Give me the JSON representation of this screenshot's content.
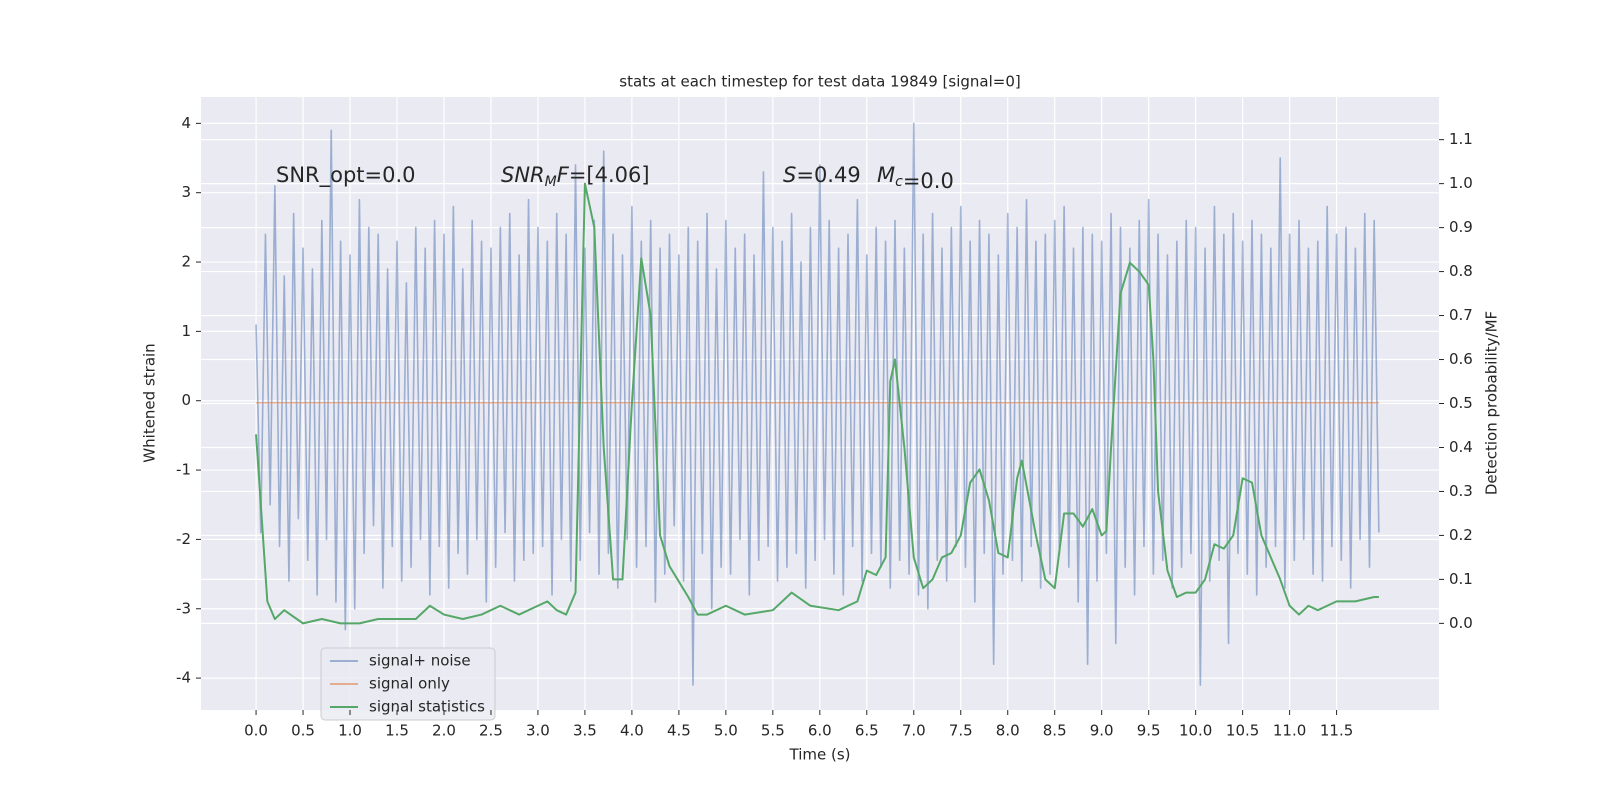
{
  "chart_data": {
    "type": "line",
    "title": "stats at each timestep for test data 19849 [signal=0]",
    "x_label": "Time (s)",
    "y_label": "Whitened strain",
    "y2_label": "Detection probability/MF",
    "grid": true,
    "legend": "lower left",
    "xlim": [
      -0.586,
      12.59
    ],
    "ylim": [
      -4.46,
      4.38
    ],
    "y2lim": [
      -0.197,
      1.197
    ],
    "xticks": [
      {
        "value": 0,
        "label": "0.0"
      },
      0.5,
      {
        "value": 1,
        "label": "1.0"
      },
      1.5,
      {
        "value": 2,
        "label": "2.0"
      },
      2.5,
      {
        "value": 3,
        "label": "3.0"
      },
      3.5,
      {
        "value": 4,
        "label": "4.0"
      },
      4.5,
      {
        "value": 5,
        "label": "5.0"
      },
      5.5,
      {
        "value": 6,
        "label": "6.0"
      },
      6.5,
      {
        "value": 7,
        "label": "7.0"
      },
      7.5,
      {
        "value": 8,
        "label": "8.0"
      },
      8.5,
      {
        "value": 9,
        "label": "9.0"
      },
      9.5,
      {
        "value": 10,
        "label": "10.0"
      },
      10.5,
      {
        "value": 11,
        "label": "11.0"
      },
      11.5
    ],
    "yticks": [
      -4,
      -3,
      -2,
      -1,
      0,
      1,
      2,
      3,
      4
    ],
    "y2ticks": [
      {
        "value": 0,
        "label": "0.0"
      },
      0.1,
      0.2,
      0.3,
      0.4,
      0.5,
      0.6,
      0.7,
      0.8,
      0.9,
      {
        "value": 1,
        "label": "1.0"
      },
      1.1
    ],
    "annotations": [
      {
        "text": "SNR_opt=0.0"
      },
      {
        "math": "SNR",
        "sub": "M",
        "math2": "F",
        "text": "=[4.06]"
      },
      {
        "math": "S",
        "text": "=0.49"
      },
      {
        "math": "M",
        "sub": "c",
        "text": "=0.0"
      }
    ],
    "series": [
      {
        "name": "signal+ noise",
        "color": "#4c72b0",
        "opacity": 0.5,
        "x": [
          0,
          0.05,
          0.1,
          0.15,
          0.2,
          0.25,
          0.3,
          0.35,
          0.4,
          0.45,
          0.5,
          0.55,
          0.6,
          0.65,
          0.7,
          0.75,
          0.8,
          0.85,
          0.9,
          0.95,
          1,
          1.05,
          1.1,
          1.15,
          1.2,
          1.25,
          1.3,
          1.35,
          1.4,
          1.45,
          1.5,
          1.55,
          1.6,
          1.65,
          1.7,
          1.75,
          1.8,
          1.85,
          1.9,
          1.95,
          2,
          2.05,
          2.1,
          2.15,
          2.2,
          2.25,
          2.3,
          2.35,
          2.4,
          2.45,
          2.5,
          2.55,
          2.6,
          2.65,
          2.7,
          2.75,
          2.8,
          2.85,
          2.9,
          2.95,
          3,
          3.05,
          3.1,
          3.15,
          3.2,
          3.25,
          3.3,
          3.35,
          3.4,
          3.45,
          3.5,
          3.55,
          3.6,
          3.65,
          3.7,
          3.75,
          3.8,
          3.85,
          3.9,
          3.95,
          4,
          4.05,
          4.1,
          4.15,
          4.2,
          4.25,
          4.3,
          4.35,
          4.4,
          4.45,
          4.5,
          4.55,
          4.6,
          4.65,
          4.7,
          4.75,
          4.8,
          4.85,
          4.9,
          4.95,
          5,
          5.05,
          5.1,
          5.15,
          5.2,
          5.25,
          5.3,
          5.35,
          5.4,
          5.45,
          5.5,
          5.55,
          5.6,
          5.65,
          5.7,
          5.75,
          5.8,
          5.85,
          5.9,
          5.95,
          6,
          6.05,
          6.1,
          6.15,
          6.2,
          6.25,
          6.3,
          6.35,
          6.4,
          6.45,
          6.5,
          6.55,
          6.6,
          6.65,
          6.7,
          6.75,
          6.8,
          6.85,
          6.9,
          6.95,
          7,
          7.05,
          7.1,
          7.15,
          7.2,
          7.25,
          7.3,
          7.35,
          7.4,
          7.45,
          7.5,
          7.55,
          7.6,
          7.65,
          7.7,
          7.75,
          7.8,
          7.85,
          7.9,
          7.95,
          8,
          8.05,
          8.1,
          8.15,
          8.2,
          8.25,
          8.3,
          8.35,
          8.4,
          8.45,
          8.5,
          8.55,
          8.6,
          8.65,
          8.7,
          8.75,
          8.8,
          8.85,
          8.9,
          8.95,
          9,
          9.05,
          9.1,
          9.15,
          9.2,
          9.25,
          9.3,
          9.35,
          9.4,
          9.45,
          9.5,
          9.55,
          9.6,
          9.65,
          9.7,
          9.75,
          9.8,
          9.85,
          9.9,
          9.95,
          10,
          10.05,
          10.1,
          10.15,
          10.2,
          10.25,
          10.3,
          10.35,
          10.4,
          10.45,
          10.5,
          10.55,
          10.6,
          10.65,
          10.7,
          10.75,
          10.8,
          10.85,
          10.9,
          10.95,
          11,
          11.05,
          11.1,
          11.15,
          11.2,
          11.25,
          11.3,
          11.35,
          11.4,
          11.45,
          11.5,
          11.55,
          11.6,
          11.65,
          11.7,
          11.75,
          11.8,
          11.85,
          11.9,
          11.95
        ],
        "values": [
          1.1,
          -1.9,
          2.4,
          -1.5,
          3.1,
          -2.1,
          1.8,
          -2.6,
          2.7,
          -1.7,
          2.2,
          -2.3,
          1.9,
          -2.8,
          2.6,
          -2.0,
          3.9,
          -2.9,
          2.3,
          -3.3,
          2.1,
          -3.0,
          2.9,
          -2.2,
          2.5,
          -1.8,
          2.4,
          -2.7,
          1.9,
          -2.1,
          2.3,
          -2.6,
          1.7,
          -2.4,
          2.5,
          -2.0,
          2.2,
          -2.8,
          2.6,
          -2.1,
          2.4,
          -2.7,
          2.8,
          -2.2,
          1.9,
          -2.5,
          2.6,
          -2.0,
          2.3,
          -2.9,
          2.2,
          -2.4,
          2.5,
          -1.9,
          2.7,
          -2.6,
          2.1,
          -2.3,
          2.9,
          -2.2,
          2.5,
          -2.1,
          2.3,
          -2.8,
          2.7,
          -2.0,
          2.4,
          -2.6,
          3.4,
          -2.3,
          2.2,
          -1.9,
          2.6,
          -2.5,
          3.6,
          -2.2,
          2.4,
          -2.7,
          2.1,
          -2.0,
          2.8,
          -2.4,
          2.3,
          -2.1,
          2.6,
          -2.9,
          2.2,
          -2.5,
          2.4,
          -1.8,
          2.1,
          -2.6,
          2.5,
          -4.1,
          2.3,
          -2.2,
          2.7,
          -3.0,
          1.9,
          -2.4,
          2.6,
          -2.5,
          2.2,
          -2.0,
          2.4,
          -2.8,
          2.1,
          -2.3,
          3.3,
          -2.1,
          2.5,
          -2.6,
          2.3,
          -2.4,
          2.7,
          -2.2,
          2.0,
          -2.7,
          2.5,
          -2.3,
          3.4,
          -2.0,
          2.6,
          -2.5,
          2.2,
          -2.8,
          2.4,
          -2.1,
          2.9,
          -2.6,
          2.1,
          -2.2,
          2.5,
          -2.4,
          2.3,
          -2.7,
          2.6,
          -2.3,
          2.2,
          -2.5,
          4.0,
          -2.8,
          2.4,
          -3.0,
          2.7,
          -2.3,
          2.2,
          -2.6,
          2.5,
          -2.1,
          2.8,
          -2.4,
          2.3,
          -2.9,
          2.6,
          -2.2,
          2.4,
          -3.8,
          2.1,
          -2.5,
          2.7,
          -2.3,
          2.5,
          -2.6,
          2.9,
          -2.1,
          2.3,
          -2.7,
          2.4,
          -2.5,
          2.6,
          -2.2,
          2.8,
          -2.4,
          2.2,
          -2.9,
          2.5,
          -3.8,
          2.4,
          -2.6,
          2.3,
          -2.2,
          2.7,
          -3.5,
          2.5,
          -2.4,
          2.2,
          -2.8,
          2.6,
          -2.1,
          2.9,
          -2.5,
          2.4,
          -2.3,
          2.1,
          -2.7,
          2.3,
          -2.4,
          2.6,
          -2.2,
          2.5,
          -4.1,
          2.2,
          -2.6,
          2.8,
          -2.3,
          2.4,
          -3.5,
          2.7,
          -2.2,
          2.3,
          -2.5,
          2.6,
          -2.8,
          2.4,
          -2.4,
          2.2,
          -2.1,
          3.5,
          -2.7,
          2.4,
          -2.3,
          2.6,
          -2.0,
          2.2,
          -2.5,
          2.3,
          -2.6,
          2.8,
          -2.1,
          2.4,
          -2.3,
          2.5,
          -2.7,
          2.2,
          -2.0,
          2.7,
          -2.4,
          2.6,
          -1.9
        ]
      },
      {
        "name": "signal only",
        "color": "#dd8452",
        "opacity": 0.6,
        "x": [
          0,
          11.95
        ],
        "values": [
          -0.03,
          -0.03
        ]
      },
      {
        "name": "signal statistics",
        "color": "#55a868",
        "opacity": 1,
        "axis": "y2",
        "x": [
          0,
          0.12,
          0.2,
          0.3,
          0.5,
          0.7,
          0.9,
          1.1,
          1.3,
          1.5,
          1.7,
          1.85,
          2.0,
          2.2,
          2.4,
          2.6,
          2.8,
          3.0,
          3.1,
          3.2,
          3.3,
          3.4,
          3.5,
          3.6,
          3.7,
          3.8,
          3.9,
          4.0,
          4.1,
          4.2,
          4.3,
          4.4,
          4.6,
          4.7,
          4.8,
          5.0,
          5.2,
          5.5,
          5.7,
          5.9,
          6.2,
          6.4,
          6.5,
          6.6,
          6.7,
          6.75,
          6.8,
          6.9,
          7.0,
          7.1,
          7.2,
          7.3,
          7.4,
          7.5,
          7.6,
          7.7,
          7.8,
          7.9,
          8.0,
          8.1,
          8.15,
          8.3,
          8.4,
          8.5,
          8.6,
          8.7,
          8.8,
          8.9,
          9.0,
          9.05,
          9.1,
          9.2,
          9.3,
          9.4,
          9.5,
          9.55,
          9.6,
          9.7,
          9.8,
          9.9,
          10.0,
          10.1,
          10.2,
          10.3,
          10.4,
          10.5,
          10.6,
          10.7,
          10.8,
          10.9,
          11.0,
          11.1,
          11.2,
          11.3,
          11.4,
          11.5,
          11.6,
          11.7,
          11.9,
          11.95
        ],
        "values": [
          0.43,
          0.05,
          0.01,
          0.03,
          0.0,
          0.01,
          0.0,
          0.0,
          0.01,
          0.01,
          0.01,
          0.04,
          0.02,
          0.01,
          0.02,
          0.04,
          0.02,
          0.04,
          0.05,
          0.03,
          0.02,
          0.07,
          1.0,
          0.9,
          0.4,
          0.1,
          0.1,
          0.5,
          0.83,
          0.7,
          0.2,
          0.13,
          0.06,
          0.02,
          0.02,
          0.04,
          0.02,
          0.03,
          0.07,
          0.04,
          0.03,
          0.05,
          0.12,
          0.11,
          0.15,
          0.55,
          0.6,
          0.4,
          0.15,
          0.08,
          0.1,
          0.15,
          0.16,
          0.2,
          0.32,
          0.35,
          0.28,
          0.16,
          0.15,
          0.33,
          0.37,
          0.2,
          0.1,
          0.08,
          0.25,
          0.25,
          0.22,
          0.26,
          0.2,
          0.21,
          0.4,
          0.75,
          0.82,
          0.8,
          0.77,
          0.6,
          0.3,
          0.12,
          0.06,
          0.07,
          0.07,
          0.1,
          0.18,
          0.17,
          0.2,
          0.33,
          0.32,
          0.2,
          0.15,
          0.1,
          0.04,
          0.02,
          0.04,
          0.03,
          0.04,
          0.05,
          0.05,
          0.05,
          0.06,
          0.06
        ]
      }
    ]
  }
}
